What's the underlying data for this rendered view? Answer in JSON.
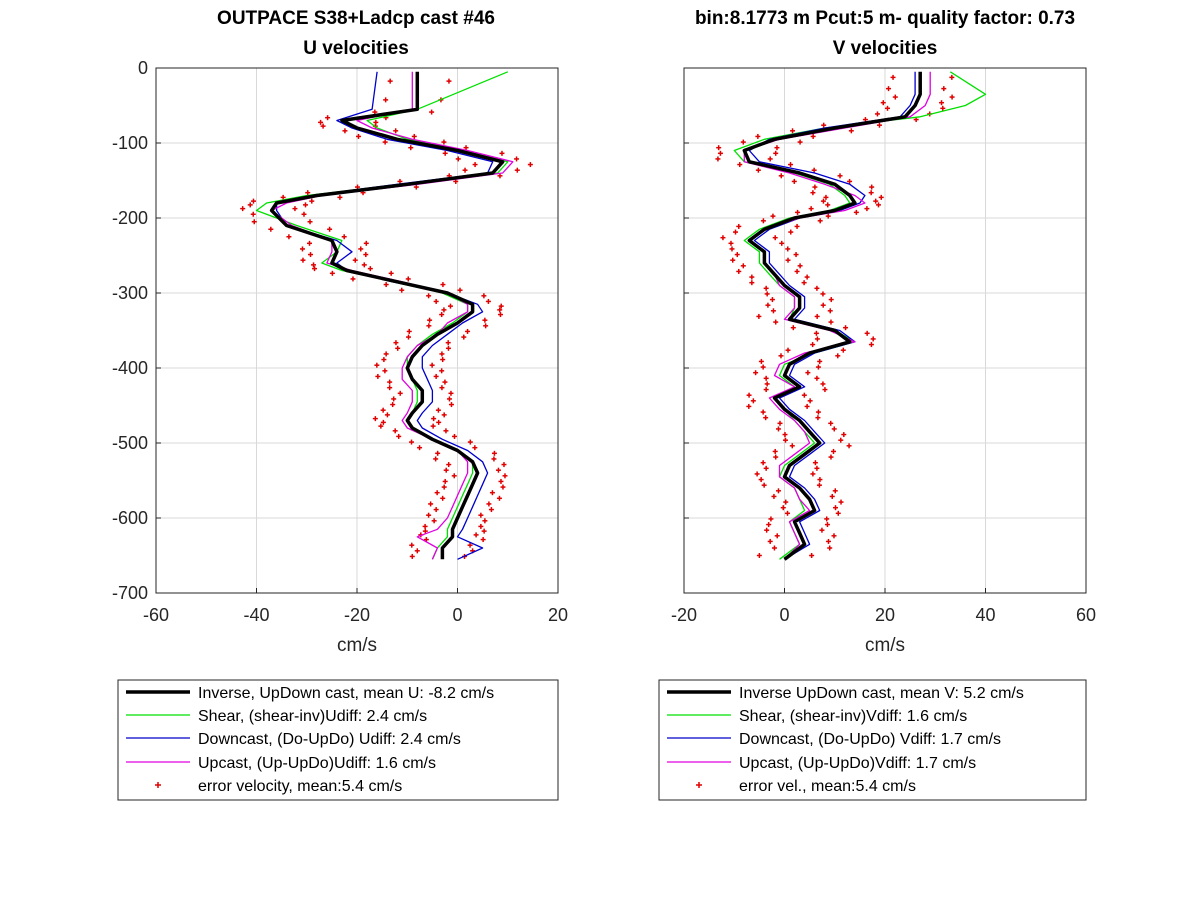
{
  "colors": {
    "inverse": "#000000",
    "shear": "#00e000",
    "downcast": "#0000cc",
    "upcast": "#e000e0",
    "error": "#e00000",
    "grid": "#d9d9d9",
    "axis": "#262626"
  },
  "chart_data": [
    {
      "type": "line",
      "title": "OUTPACE S38+Ladcp cast #46",
      "subtitle": "U velocities",
      "xlabel": "cm/s",
      "ylabel": "",
      "xlim": [
        -60,
        20
      ],
      "ylim": [
        -700,
        0
      ],
      "xticks": [
        "-60",
        "-40",
        "-20",
        "0",
        "20"
      ],
      "yticks": [
        "0",
        "-100",
        "-200",
        "-300",
        "-400",
        "-500",
        "-600",
        "-700"
      ],
      "grid": true,
      "legend_position": "below",
      "depth": [
        -5,
        -55,
        -70,
        -80,
        -95,
        -110,
        -125,
        -140,
        -155,
        -170,
        -180,
        -190,
        -210,
        -230,
        -245,
        -260,
        -270,
        -285,
        -300,
        -315,
        -325,
        -340,
        -355,
        -370,
        -385,
        -400,
        -415,
        -430,
        -445,
        -460,
        -470,
        -480,
        -495,
        -510,
        -525,
        -540,
        -555,
        -570,
        -585,
        -600,
        -615,
        -625,
        -640,
        -655
      ],
      "series": [
        {
          "name": "Inverse, UpDown cast, mean U:  -8.2 cm/s",
          "key": "inverse",
          "style": "thick",
          "values": [
            -8,
            -8,
            -23,
            -20,
            -12,
            0,
            9,
            7,
            -10,
            -28,
            -36,
            -37,
            -34,
            -25,
            -24,
            -25,
            -22,
            -12,
            -2,
            3,
            3,
            0,
            -4,
            -7,
            -9,
            -10,
            -9,
            -7,
            -7,
            -9,
            -10,
            -9,
            -5,
            0,
            3,
            4,
            3,
            2,
            1,
            0,
            -1,
            -1,
            -3,
            -3
          ]
        },
        {
          "name": "Shear, (shear-inv)Udiff:  2.4 cm/s",
          "key": "shear",
          "style": "thin",
          "values": [
            10,
            -8,
            -18,
            -16,
            -10,
            1,
            10,
            8,
            -11,
            -30,
            -38,
            -40,
            -32,
            -23,
            -24,
            -27,
            -23,
            -12,
            -3,
            2,
            2,
            -1,
            -5,
            -8,
            -10,
            -10,
            -9,
            -8,
            -8,
            -9,
            -10,
            -9,
            -5,
            0,
            3,
            3,
            2,
            1,
            0,
            -1,
            -2,
            -2,
            -4,
            -5
          ]
        },
        {
          "name": "Downcast, (Do-UpDo) Udiff:  2.4 cm/s",
          "key": "downcast",
          "style": "thin",
          "values": [
            -16,
            -17,
            -24,
            -21,
            -14,
            -2,
            7,
            6,
            -12,
            -29,
            -36,
            -36,
            -34,
            -24,
            -21,
            -24,
            -22,
            -13,
            -2,
            4,
            5,
            1,
            -2,
            -5,
            -7,
            -7,
            -6,
            -5,
            -5,
            -7,
            -8,
            -7,
            -3,
            2,
            5,
            6,
            5,
            4,
            3,
            2,
            1,
            0,
            5,
            0
          ]
        },
        {
          "name": "Upcast, (Up-UpDo)Udiff:  1.6 cm/s",
          "key": "upcast",
          "style": "thin",
          "values": [
            -9,
            -9,
            -20,
            -17,
            -9,
            2,
            11,
            9,
            -8,
            -27,
            -34,
            -37,
            -33,
            -25,
            -25,
            -26,
            -21,
            -11,
            -2,
            2,
            2,
            -2,
            -4,
            -8,
            -10,
            -11,
            -11,
            -9,
            -9,
            -10,
            -11,
            -10,
            -5,
            0,
            2,
            2,
            1,
            0,
            -1,
            -2,
            -4,
            -8,
            -4,
            -5
          ]
        }
      ],
      "error_series": {
        "name": "error velocity, mean:5.4 cm/s",
        "key": "error",
        "half_width": 5.4
      }
    },
    {
      "type": "line",
      "title": "bin:8.1773 m  Pcut:5 m- quality factor:  0.73",
      "subtitle": "V velocities",
      "xlabel": "cm/s",
      "ylabel": "",
      "xlim": [
        -20,
        60
      ],
      "ylim": [
        -700,
        0
      ],
      "xticks": [
        "-20",
        "0",
        "20",
        "40",
        "60"
      ],
      "yticks": [
        "0",
        "-100",
        "-200",
        "-300",
        "-400",
        "-500",
        "-600",
        "-700"
      ],
      "grid": true,
      "legend_position": "below",
      "depth": [
        -5,
        -35,
        -50,
        -65,
        -80,
        -95,
        -110,
        -125,
        -140,
        -155,
        -170,
        -180,
        -190,
        -200,
        -215,
        -230,
        -245,
        -260,
        -275,
        -290,
        -305,
        -320,
        -335,
        -350,
        -365,
        -380,
        -395,
        -410,
        -425,
        -440,
        -455,
        -470,
        -485,
        -500,
        -515,
        -530,
        -545,
        -560,
        -575,
        -590,
        -605,
        -620,
        -635,
        -655
      ],
      "series": [
        {
          "name": "Inverse UpDown cast, mean V:  5.2 cm/s",
          "key": "inverse",
          "style": "thick",
          "values": [
            27,
            27,
            26,
            24,
            10,
            -2,
            -8,
            -7,
            3,
            10,
            13,
            14,
            10,
            2,
            -4,
            -7,
            -4,
            -4,
            -2,
            0,
            3,
            3,
            1,
            10,
            13,
            5,
            1,
            0,
            3,
            -2,
            0,
            3,
            5,
            7,
            4,
            1,
            0,
            3,
            5,
            6,
            2,
            3,
            4,
            0
          ]
        },
        {
          "name": "Shear, (shear-inv)Vdiff:  1.6 cm/s",
          "key": "shear",
          "style": "thin",
          "values": [
            33,
            40,
            36,
            27,
            8,
            -4,
            -10,
            -8,
            2,
            9,
            12,
            13,
            9,
            1,
            -5,
            -8,
            -5,
            -5,
            -3,
            -1,
            2,
            2,
            1,
            10,
            14,
            6,
            0,
            -1,
            2,
            -2,
            0,
            2,
            4,
            6,
            3,
            0,
            -1,
            2,
            3,
            4,
            1,
            2,
            3,
            -1
          ]
        },
        {
          "name": "Downcast, (Do-UpDo) Vdiff:  1.7 cm/s",
          "key": "downcast",
          "style": "thin",
          "values": [
            26,
            26,
            25,
            23,
            8,
            -3,
            -7,
            -5,
            6,
            13,
            16,
            15,
            11,
            3,
            -3,
            -6,
            -3,
            -3,
            -1,
            1,
            4,
            4,
            2,
            11,
            14,
            6,
            2,
            1,
            4,
            -1,
            1,
            4,
            6,
            8,
            5,
            2,
            1,
            4,
            6,
            7,
            3,
            4,
            5,
            0
          ]
        },
        {
          "name": "Upcast, (Up-UpDo)Vdiff:  1.7 cm/s",
          "key": "upcast",
          "style": "thin",
          "values": [
            29,
            29,
            28,
            25,
            12,
            -1,
            -8,
            -8,
            1,
            8,
            14,
            16,
            12,
            3,
            -4,
            -7,
            -4,
            -4,
            -2,
            -1,
            2,
            2,
            0,
            9,
            14,
            4,
            -1,
            -2,
            2,
            -3,
            -1,
            2,
            4,
            5,
            2,
            -1,
            -1,
            2,
            3,
            5,
            1,
            2,
            3,
            0
          ]
        }
      ],
      "error_series": {
        "name": "error vel., mean:5.4 cm/s",
        "key": "error",
        "half_width": 5.4
      }
    }
  ]
}
